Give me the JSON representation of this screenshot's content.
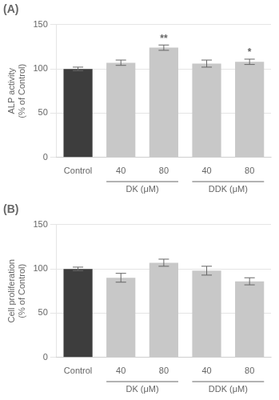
{
  "chart_data": [
    {
      "type": "bar",
      "title": "(A)",
      "ylabel": "ALP activity\n(% of Control)",
      "categories": [
        "Control",
        "40",
        "80",
        "40",
        "80"
      ],
      "groups": [
        null,
        "DK (μM)",
        "DK (μM)",
        "DDK (μM)",
        "DDK (μM)"
      ],
      "values": [
        100,
        107,
        124,
        106,
        108
      ],
      "errors": [
        2,
        3,
        3,
        4,
        3
      ],
      "significance": [
        null,
        null,
        "**",
        null,
        "*"
      ],
      "colors": [
        "#3d3d3d",
        "#c8c8c8",
        "#c8c8c8",
        "#c8c8c8",
        "#c8c8c8"
      ],
      "ylim": [
        0,
        150
      ],
      "yticks": [
        0,
        50,
        100,
        150
      ],
      "grid": true
    },
    {
      "type": "bar",
      "title": "(B)",
      "ylabel": "Cell proliferation\n(% of Control)",
      "categories": [
        "Control",
        "40",
        "80",
        "40",
        "80"
      ],
      "groups": [
        null,
        "DK (μM)",
        "DK (μM)",
        "DDK (μM)",
        "DDK (μM)"
      ],
      "values": [
        100,
        90,
        107,
        98,
        86
      ],
      "errors": [
        2,
        5,
        4,
        5,
        4
      ],
      "colors": [
        "#3d3d3d",
        "#c8c8c8",
        "#c8c8c8",
        "#c8c8c8",
        "#c8c8c8"
      ],
      "ylim": [
        0,
        150
      ],
      "yticks": [
        0,
        50,
        100,
        150
      ],
      "grid": true
    }
  ]
}
